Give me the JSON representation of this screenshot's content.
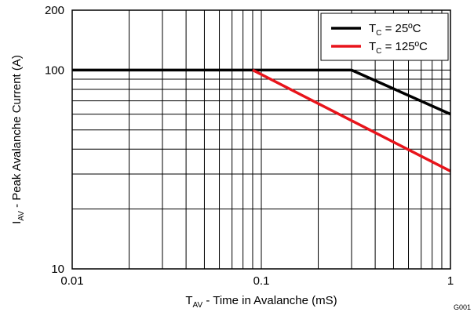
{
  "chart_data": {
    "type": "line",
    "xscale": "log",
    "yscale": "log",
    "xlim": [
      0.01,
      1
    ],
    "ylim": [
      10,
      200
    ],
    "grid": true,
    "legend": "top-right",
    "xlabel": {
      "main": "T",
      "sub": "AV",
      "rest": " - Time in Avalanche (mS)"
    },
    "ylabel": {
      "main": "I",
      "sub": "AV",
      "rest": " - Peak Avalanche Current (A)"
    },
    "xticks": [
      {
        "value": 0.01,
        "label": "0.01"
      },
      {
        "value": 0.1,
        "label": "0.1"
      },
      {
        "value": 1,
        "label": "1"
      }
    ],
    "yticks": [
      {
        "value": 10,
        "label": "10"
      },
      {
        "value": 100,
        "label": "100"
      },
      {
        "value": 200,
        "label": "200"
      }
    ],
    "series": [
      {
        "name": {
          "main": "T",
          "sub": "C",
          "rest": " = 25ºC"
        },
        "color": "#000000",
        "points": [
          [
            0.01,
            100
          ],
          [
            0.3,
            100
          ],
          [
            1,
            60
          ]
        ]
      },
      {
        "name": {
          "main": "T",
          "sub": "C",
          "rest": " = 125ºC"
        },
        "color": "#e8141b",
        "points": [
          [
            0.09,
            100
          ],
          [
            1,
            31
          ]
        ]
      }
    ],
    "figure_id": "G001"
  }
}
